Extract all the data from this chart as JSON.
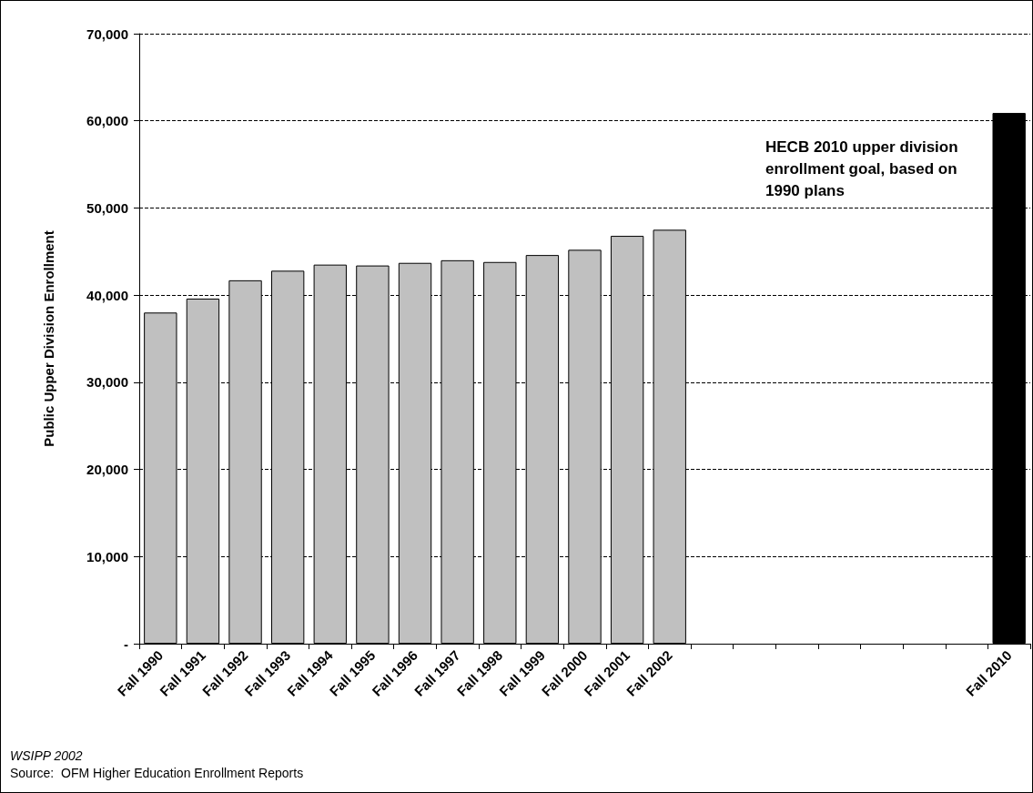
{
  "chart_data": {
    "type": "bar",
    "ylabel": "Public Upper Division Enrollment",
    "categories": [
      "Fall 1990",
      "Fall 1991",
      "Fall 1992",
      "Fall 1993",
      "Fall 1994",
      "Fall 1995",
      "Fall 1996",
      "Fall 1997",
      "Fall 1998",
      "Fall 1999",
      "Fall 2000",
      "Fall 2001",
      "Fall 2002",
      null,
      null,
      null,
      null,
      null,
      null,
      null,
      "Fall 2010"
    ],
    "values": [
      38000,
      39600,
      41700,
      42800,
      43500,
      43400,
      43700,
      44000,
      43800,
      44600,
      45200,
      46800,
      47500,
      null,
      null,
      null,
      null,
      null,
      null,
      null,
      60900
    ],
    "colors": [
      "#c0c0c0",
      "#c0c0c0",
      "#c0c0c0",
      "#c0c0c0",
      "#c0c0c0",
      "#c0c0c0",
      "#c0c0c0",
      "#c0c0c0",
      "#c0c0c0",
      "#c0c0c0",
      "#c0c0c0",
      "#c0c0c0",
      "#c0c0c0",
      null,
      null,
      null,
      null,
      null,
      null,
      null,
      "#000000"
    ],
    "ylim": [
      0,
      70000
    ],
    "yticks": [
      {
        "value": 0,
        "label": "-"
      },
      {
        "value": 10000,
        "label": "10,000"
      },
      {
        "value": 20000,
        "label": "20,000"
      },
      {
        "value": 30000,
        "label": "30,000"
      },
      {
        "value": 40000,
        "label": "40,000"
      },
      {
        "value": 50000,
        "label": "50,000"
      },
      {
        "value": 60000,
        "label": "60,000"
      },
      {
        "value": 70000,
        "label": "70,000"
      }
    ],
    "grid": "y",
    "line_style": "dashed",
    "annotations": [
      "HECB 2010 upper division enrollment goal, based on 1990 plans",
      "WSIPP 2002",
      "Source:  OFM Higher Education Enrollment Reports"
    ]
  }
}
